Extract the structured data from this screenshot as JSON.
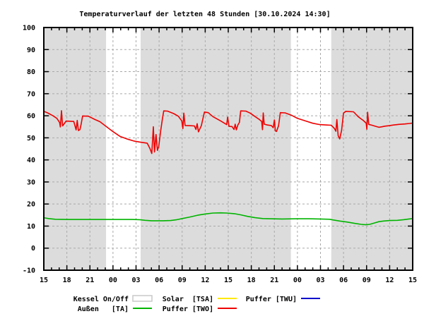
{
  "title": "Temperaturverlauf der letzten 48 Stunden [30.10.2024 14:30]",
  "chart_data": {
    "type": "line",
    "title": "Temperaturverlauf der letzten 48 Stunden [30.10.2024 14:30]",
    "x_axis": {
      "label": "",
      "hours_span": 48,
      "tick_interval_hours": 3,
      "minor_tick_interval_hours": 1,
      "tick_labels": [
        "15",
        "18",
        "21",
        "00",
        "03",
        "06",
        "09",
        "12",
        "15",
        "18",
        "21",
        "00",
        "03",
        "06",
        "09",
        "12",
        "15"
      ]
    },
    "y_axis": {
      "label": "",
      "min": -10,
      "max": 100,
      "tick_interval": 10,
      "tick_labels": [
        "100",
        "90",
        "80",
        "70",
        "60",
        "50",
        "40",
        "30",
        "20",
        "10",
        "0",
        "-10"
      ]
    },
    "grid": true,
    "legend_position": "bottom",
    "kessel_on_bands_hours": [
      [
        0,
        8.1
      ],
      [
        12.6,
        32.15
      ],
      [
        37.4,
        48
      ]
    ],
    "series": [
      {
        "key": "ta",
        "name": "Außen [TA]",
        "color": "#00B400",
        "points": [
          [
            0,
            13.8
          ],
          [
            0.6,
            13.4
          ],
          [
            1.5,
            13.1
          ],
          [
            3,
            13.0
          ],
          [
            6,
            13.0
          ],
          [
            9,
            13.0
          ],
          [
            11.5,
            13.0
          ],
          [
            12.5,
            12.9
          ],
          [
            13.2,
            12.6
          ],
          [
            14,
            12.4
          ],
          [
            15.5,
            12.4
          ],
          [
            16.5,
            12.5
          ],
          [
            17.3,
            12.9
          ],
          [
            18,
            13.4
          ],
          [
            19,
            14.1
          ],
          [
            20,
            14.9
          ],
          [
            21,
            15.5
          ],
          [
            22,
            15.9
          ],
          [
            23,
            16.0
          ],
          [
            23.8,
            15.9
          ],
          [
            24.8,
            15.6
          ],
          [
            25.6,
            15.1
          ],
          [
            26.5,
            14.4
          ],
          [
            27.5,
            13.8
          ],
          [
            28.5,
            13.4
          ],
          [
            29.5,
            13.3
          ],
          [
            31,
            13.2
          ],
          [
            33,
            13.3
          ],
          [
            34.5,
            13.3
          ],
          [
            36,
            13.2
          ],
          [
            37.2,
            13.1
          ],
          [
            37.6,
            12.8
          ],
          [
            38.5,
            12.3
          ],
          [
            39.5,
            11.8
          ],
          [
            40.5,
            11.2
          ],
          [
            41.3,
            10.8
          ],
          [
            41.9,
            10.6
          ],
          [
            42.4,
            10.8
          ],
          [
            43,
            11.4
          ],
          [
            43.6,
            12.0
          ],
          [
            44.2,
            12.3
          ],
          [
            45,
            12.5
          ],
          [
            46,
            12.6
          ],
          [
            46.8,
            12.9
          ],
          [
            47.5,
            13.2
          ],
          [
            48,
            13.4
          ]
        ]
      },
      {
        "key": "two",
        "name": "Puffer [TWO]",
        "color": "#EE0000",
        "points": [
          [
            0,
            62.0
          ],
          [
            0.5,
            61.3
          ],
          [
            1.2,
            60.0
          ],
          [
            1.7,
            58.8
          ],
          [
            2.05,
            57.0
          ],
          [
            2.15,
            54.9
          ],
          [
            2.3,
            62.3
          ],
          [
            2.45,
            55.4
          ],
          [
            2.9,
            57.6
          ],
          [
            3.9,
            57.4
          ],
          [
            4.2,
            53.6
          ],
          [
            4.35,
            57.9
          ],
          [
            4.5,
            53.3
          ],
          [
            4.7,
            53.7
          ],
          [
            4.85,
            56.0
          ],
          [
            5.05,
            59.9
          ],
          [
            5.8,
            59.8
          ],
          [
            6.6,
            58.4
          ],
          [
            7.3,
            57.3
          ],
          [
            8.1,
            55.2
          ],
          [
            9.0,
            52.8
          ],
          [
            9.9,
            50.7
          ],
          [
            10.9,
            49.4
          ],
          [
            11.8,
            48.5
          ],
          [
            12.6,
            48.0
          ],
          [
            13.45,
            47.6
          ],
          [
            13.8,
            45.2
          ],
          [
            14.05,
            42.9
          ],
          [
            14.25,
            55.0
          ],
          [
            14.4,
            43.6
          ],
          [
            14.6,
            51.5
          ],
          [
            14.78,
            44.3
          ],
          [
            14.95,
            46.0
          ],
          [
            15.2,
            53.0
          ],
          [
            15.45,
            59.0
          ],
          [
            15.6,
            62.2
          ],
          [
            16.1,
            62.1
          ],
          [
            16.9,
            61.0
          ],
          [
            17.5,
            59.8
          ],
          [
            17.95,
            57.7
          ],
          [
            18.1,
            54.2
          ],
          [
            18.22,
            61.2
          ],
          [
            18.38,
            55.6
          ],
          [
            19.1,
            55.5
          ],
          [
            19.6,
            55.4
          ],
          [
            19.8,
            53.8
          ],
          [
            19.95,
            56.4
          ],
          [
            20.12,
            52.7
          ],
          [
            20.5,
            55.5
          ],
          [
            20.75,
            59.5
          ],
          [
            20.9,
            61.7
          ],
          [
            21.4,
            61.4
          ],
          [
            22.0,
            59.6
          ],
          [
            23.0,
            57.7
          ],
          [
            23.8,
            56.0
          ],
          [
            23.92,
            59.4
          ],
          [
            24.1,
            55.2
          ],
          [
            24.5,
            55.1
          ],
          [
            24.75,
            53.8
          ],
          [
            24.9,
            56.2
          ],
          [
            25.05,
            53.6
          ],
          [
            25.25,
            55.8
          ],
          [
            25.45,
            57.0
          ],
          [
            25.62,
            62.2
          ],
          [
            26.3,
            62.1
          ],
          [
            26.85,
            61.2
          ],
          [
            27.5,
            59.6
          ],
          [
            28.05,
            58.3
          ],
          [
            28.35,
            57.4
          ],
          [
            28.45,
            53.7
          ],
          [
            28.55,
            61.3
          ],
          [
            28.68,
            56.2
          ],
          [
            29.1,
            55.8
          ],
          [
            29.6,
            55.6
          ],
          [
            29.85,
            54.6
          ],
          [
            30.0,
            58.1
          ],
          [
            30.12,
            53.2
          ],
          [
            30.28,
            52.9
          ],
          [
            30.55,
            55.5
          ],
          [
            30.78,
            61.4
          ],
          [
            31.4,
            61.3
          ],
          [
            32.2,
            60.3
          ],
          [
            33.0,
            58.8
          ],
          [
            34.0,
            57.7
          ],
          [
            35.0,
            56.6
          ],
          [
            35.9,
            56.0
          ],
          [
            36.8,
            55.8
          ],
          [
            37.4,
            55.7
          ],
          [
            37.8,
            54.3
          ],
          [
            38.0,
            53.0
          ],
          [
            38.13,
            58.3
          ],
          [
            38.3,
            51.0
          ],
          [
            38.5,
            49.5
          ],
          [
            38.75,
            53.4
          ],
          [
            39.0,
            61.2
          ],
          [
            39.3,
            62.0
          ],
          [
            40.3,
            61.8
          ],
          [
            40.9,
            59.6
          ],
          [
            41.6,
            57.8
          ],
          [
            41.95,
            56.6
          ],
          [
            42.03,
            53.9
          ],
          [
            42.13,
            61.6
          ],
          [
            42.28,
            56.1
          ],
          [
            42.7,
            55.7
          ],
          [
            43.2,
            55.2
          ],
          [
            43.6,
            54.8
          ],
          [
            44.0,
            55.0
          ],
          [
            44.4,
            55.3
          ],
          [
            44.9,
            55.5
          ],
          [
            45.5,
            55.8
          ],
          [
            46.2,
            56.1
          ],
          [
            47.0,
            56.3
          ],
          [
            47.6,
            56.5
          ],
          [
            48,
            56.7
          ]
        ]
      },
      {
        "key": "tsa",
        "name": "Solar [TSA]",
        "color": "#FFE800",
        "points": []
      },
      {
        "key": "twu",
        "name": "Puffer [TWU]",
        "color": "#0000CC",
        "points": []
      }
    ],
    "colors": {
      "band": "#DCDCDC",
      "grid": "#A9A9A9",
      "frame": "#000000",
      "background": "#FFFFFF"
    }
  },
  "legend": {
    "items": [
      {
        "label": "Kessel On/Off",
        "swatch": "box",
        "color": "#FFFFFF",
        "border": "#C8C8C8"
      },
      {
        "label": "Solar  [TSA]",
        "swatch": "line",
        "color": "#FFE800"
      },
      {
        "label": "Puffer [TWU]",
        "swatch": "line",
        "color": "#0000CC"
      },
      {
        "label": "Außen   [TA]",
        "swatch": "line",
        "color": "#00B400"
      },
      {
        "label": "Puffer [TWO]",
        "swatch": "line",
        "color": "#EE0000"
      }
    ]
  }
}
